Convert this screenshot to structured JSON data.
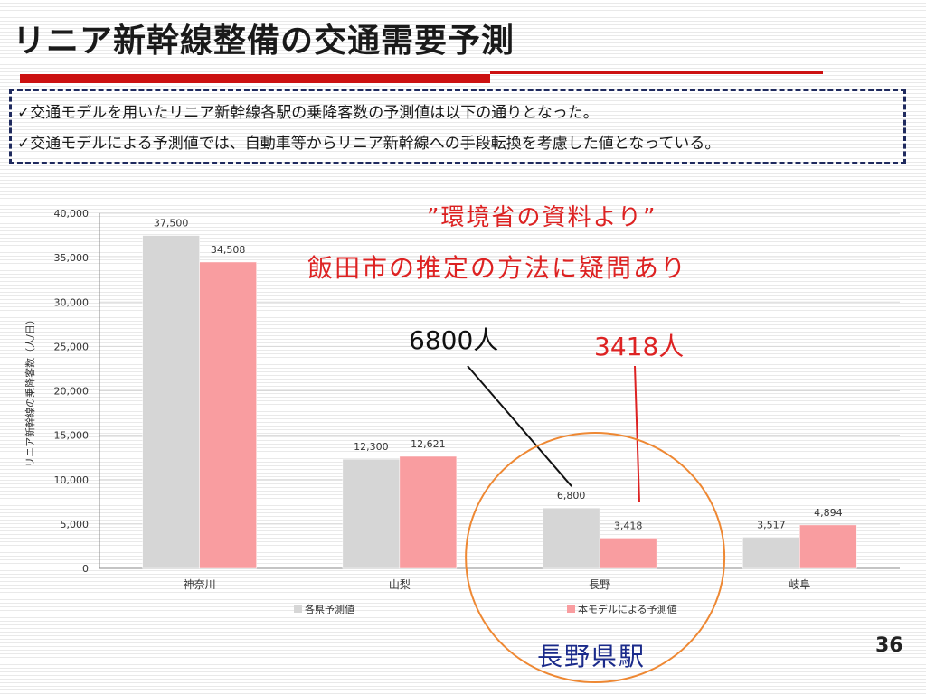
{
  "slide": {
    "title": "リニア新幹線整備の交通需要予測",
    "bullets": [
      "✓交通モデルを用いたリニア新幹線各駅の乗降客数の予測値は以下の通りとなった。",
      "✓交通モデルによる予測値では、自動車等からリニア新幹線への手段転換を考慮した値となっている。"
    ],
    "page_number": "36"
  },
  "annotations": {
    "source": "”環境省の資料より”",
    "doubt": "飯田市の推定の方法に疑問あり",
    "value_prefecture": "6800人",
    "value_model": "3418人",
    "station": "長野県駅"
  },
  "colors": {
    "series_prefecture": "#d6d6d6",
    "series_model": "#f99da0",
    "annotation_red": "#dd2222",
    "circle": "#ee8833",
    "station_label": "#1a2a8a",
    "rule": "#cc1111"
  },
  "chart_data": {
    "type": "bar",
    "ylabel": "リニア新幹線の乗降客数（人/日）",
    "ylim": [
      0,
      40000
    ],
    "yticks": [
      0,
      5000,
      10000,
      15000,
      20000,
      25000,
      30000,
      35000,
      40000
    ],
    "ytick_labels": [
      "0",
      "5,000",
      "10,000",
      "15,000",
      "20,000",
      "25,000",
      "30,000",
      "35,000",
      "40,000"
    ],
    "grid": true,
    "legend_position": "bottom",
    "categories": [
      "神奈川",
      "山梨",
      "長野",
      "岐阜"
    ],
    "series": [
      {
        "name": "各県予測値",
        "values": [
          37500,
          12300,
          6800,
          3517
        ],
        "labels": [
          "37,500",
          "12,300",
          "6,800",
          "3,517"
        ]
      },
      {
        "name": "本モデルによる予測値",
        "values": [
          34508,
          12621,
          3418,
          4894
        ],
        "labels": [
          "34,508",
          "12,621",
          "3,418",
          "4,894"
        ]
      }
    ]
  }
}
